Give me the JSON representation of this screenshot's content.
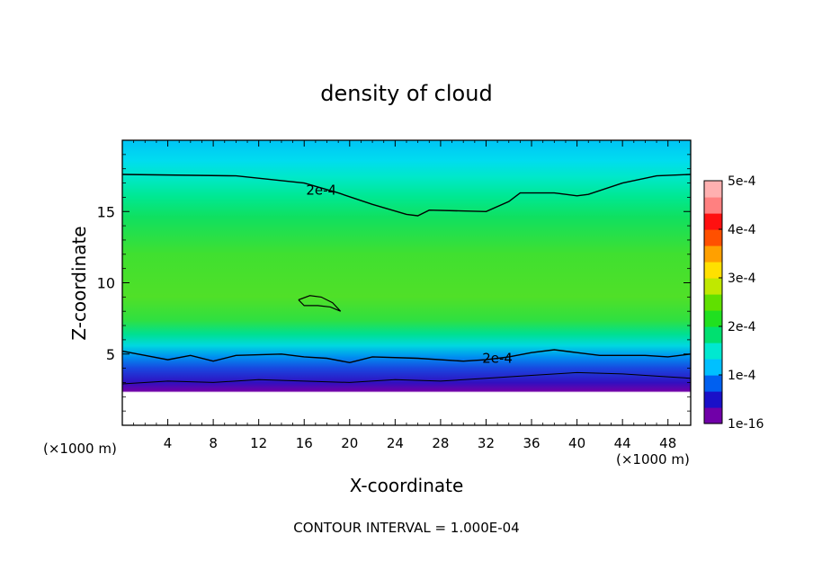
{
  "chart_data": {
    "type": "heatmap",
    "title": "density of cloud",
    "xlabel": "X-coordinate",
    "ylabel": "Z-coordinate",
    "x_unit_left": "(×1000 m)",
    "x_unit_right": "(×1000 m)",
    "xlim": [
      0,
      50
    ],
    "ylim": [
      0,
      20
    ],
    "x_ticks": [
      4,
      8,
      12,
      16,
      20,
      24,
      28,
      32,
      36,
      40,
      44,
      48
    ],
    "y_ticks": [
      5,
      10,
      15
    ],
    "colorbar": {
      "labels": [
        "5e-4",
        "4e-4",
        "3e-4",
        "2e-4",
        "1e-4",
        "1e-16"
      ],
      "values": [
        0.0005,
        0.0004,
        0.0003,
        0.0002,
        0.0001,
        1e-16
      ],
      "range": [
        1e-16,
        0.0005
      ],
      "colors": [
        "#7000a8",
        "#1a10c8",
        "#0060f0",
        "#00c0ff",
        "#00e8d0",
        "#00e070",
        "#20e020",
        "#60e000",
        "#c0e800",
        "#ffe000",
        "#ffa000",
        "#ff5000",
        "#ff1010",
        "#ff8080",
        "#ffb0b0"
      ]
    },
    "contour_labels": [
      {
        "text": "2e-4",
        "x": 17.5,
        "y": 16.5
      },
      {
        "text": "2e-4",
        "x": 33,
        "y": 4.7
      }
    ],
    "contour_2e4_upper": [
      [
        0,
        17.6
      ],
      [
        10,
        17.5
      ],
      [
        16,
        17.0
      ],
      [
        19,
        16.3
      ],
      [
        22,
        15.5
      ],
      [
        25,
        14.8
      ],
      [
        26,
        14.7
      ],
      [
        27,
        15.1
      ],
      [
        32,
        15.0
      ],
      [
        34,
        15.7
      ],
      [
        35,
        16.3
      ],
      [
        38,
        16.3
      ],
      [
        40,
        16.1
      ],
      [
        41,
        16.2
      ],
      [
        44,
        17.0
      ],
      [
        47,
        17.5
      ],
      [
        50,
        17.6
      ]
    ],
    "contour_2e4_lower": [
      [
        0,
        5.2
      ],
      [
        2,
        4.9
      ],
      [
        4,
        4.6
      ],
      [
        6,
        4.9
      ],
      [
        8,
        4.5
      ],
      [
        10,
        4.9
      ],
      [
        14,
        5.0
      ],
      [
        16,
        4.8
      ],
      [
        18,
        4.7
      ],
      [
        20,
        4.4
      ],
      [
        22,
        4.8
      ],
      [
        26,
        4.7
      ],
      [
        30,
        4.5
      ],
      [
        32,
        4.6
      ],
      [
        34,
        4.8
      ],
      [
        36,
        5.1
      ],
      [
        38,
        5.3
      ],
      [
        40,
        5.1
      ],
      [
        42,
        4.9
      ],
      [
        46,
        4.9
      ],
      [
        48,
        4.8
      ],
      [
        50,
        5.0
      ]
    ],
    "contour_island": [
      [
        15.5,
        8.8
      ],
      [
        16.5,
        9.1
      ],
      [
        17.5,
        9.0
      ],
      [
        18.5,
        8.6
      ],
      [
        19.2,
        8.0
      ],
      [
        18.3,
        8.3
      ],
      [
        17.2,
        8.4
      ],
      [
        16.0,
        8.4
      ],
      [
        15.5,
        8.8
      ]
    ],
    "contour_1e4": [
      [
        0,
        2.9
      ],
      [
        4,
        3.1
      ],
      [
        8,
        3.0
      ],
      [
        12,
        3.2
      ],
      [
        16,
        3.1
      ],
      [
        20,
        3.0
      ],
      [
        24,
        3.2
      ],
      [
        28,
        3.1
      ],
      [
        32,
        3.3
      ],
      [
        36,
        3.5
      ],
      [
        40,
        3.7
      ],
      [
        44,
        3.6
      ],
      [
        48,
        3.4
      ],
      [
        50,
        3.3
      ]
    ],
    "annotation": "CONTOUR INTERVAL = 1.000E-04"
  }
}
